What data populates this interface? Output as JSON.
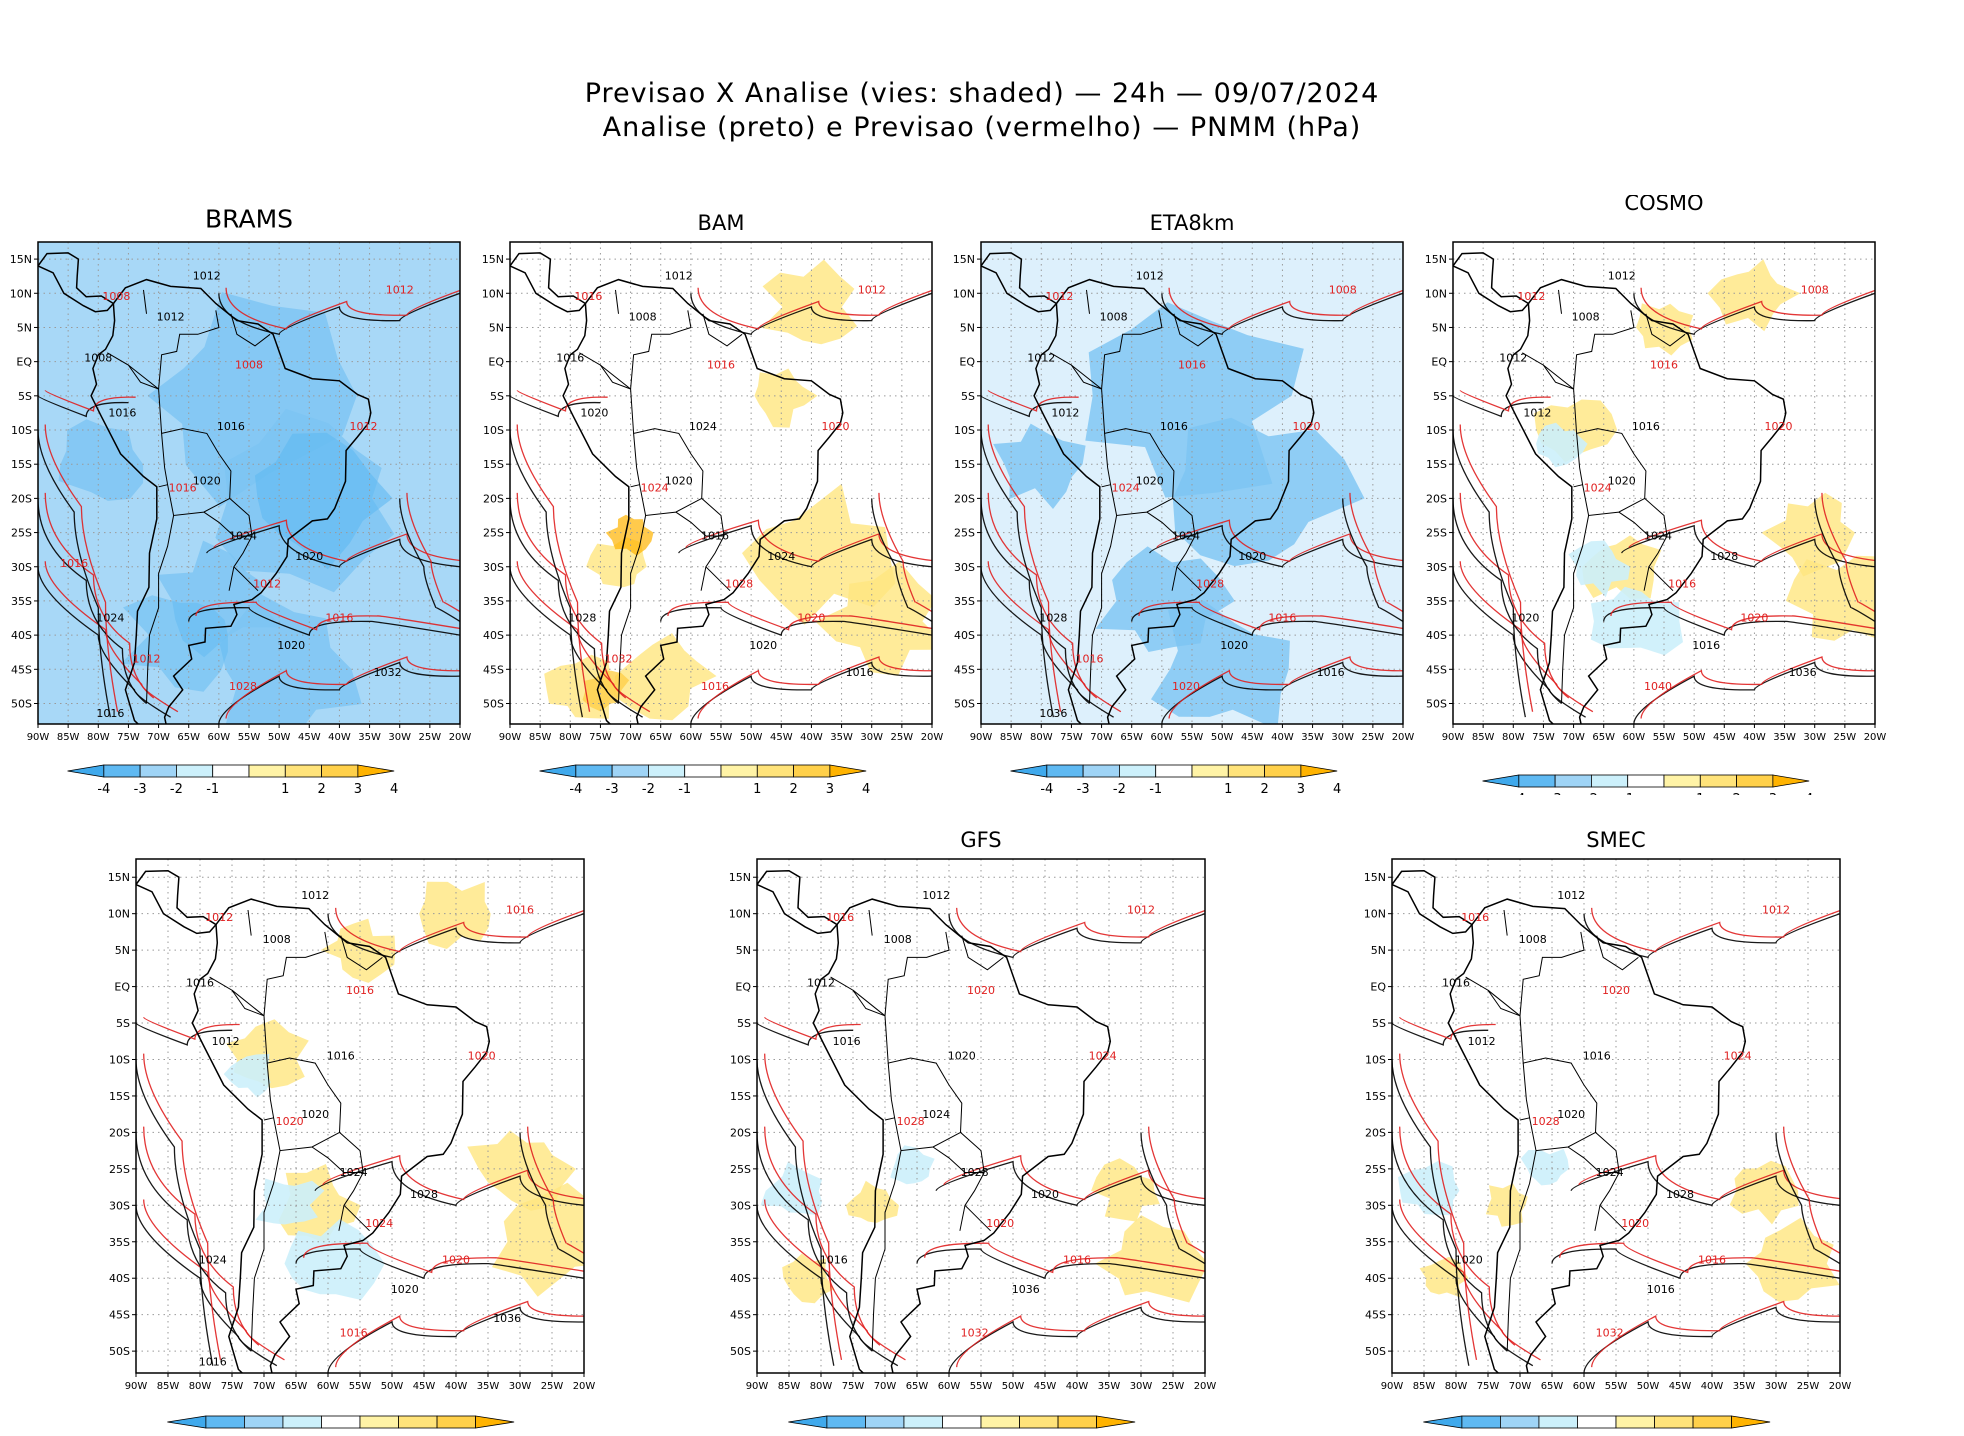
{
  "title_line1": "Previsao X Analise (vies: shaded) — 24h — 09/07/2024",
  "title_line2": "Analise (preto) e Previsao (vermelho) — PNMM (hPa)",
  "lat_labels": [
    "15N",
    "10N",
    "5N",
    "EQ",
    "5S",
    "10S",
    "15S",
    "20S",
    "25S",
    "30S",
    "35S",
    "40S",
    "45S",
    "50S"
  ],
  "lon_labels": [
    "90W",
    "85W",
    "80W",
    "75W",
    "70W",
    "65W",
    "60W",
    "55W",
    "50W",
    "45W",
    "40W",
    "35W",
    "30W",
    "25W",
    "20W"
  ],
  "colorbar": {
    "labels": [
      "-4",
      "-3",
      "-2",
      "-1",
      "1",
      "2",
      "3",
      "4"
    ],
    "colors": [
      "#3fa9ec",
      "#5fb9f2",
      "#9fd4f6",
      "#ccf0fb",
      "#ffffff",
      "#fff3a6",
      "#ffe37a",
      "#ffd04a",
      "#ffb300"
    ]
  },
  "palette": {
    "analysis": "#000000",
    "forecast": "#e02020",
    "neg": "#7cc4f2",
    "pos": "#ffe680"
  },
  "panels": [
    {
      "id": "brams",
      "name": "BRAMS",
      "bias": "negative",
      "isobars_black": [
        "1012",
        "1012",
        "1008",
        "1016",
        "1016",
        "1020",
        "1024",
        "1020",
        "1024",
        "1020",
        "1032",
        "1016"
      ],
      "isobars_red": [
        "1012",
        "1008",
        "1008",
        "1012",
        "1016",
        "1012",
        "1016",
        "1028",
        "1012",
        "1016"
      ]
    },
    {
      "id": "bam",
      "name": "BAM",
      "bias": "positive",
      "isobars_black": [
        "1012",
        "1008",
        "1016",
        "1020",
        "1024",
        "1020",
        "1016",
        "1024",
        "1028",
        "1020",
        "1016"
      ],
      "isobars_red": [
        "1012",
        "1016",
        "1016",
        "1020",
        "1024",
        "1028",
        "1020",
        "1016",
        "1032"
      ]
    },
    {
      "id": "eta8km",
      "name": "ETA8km",
      "bias": "negative",
      "isobars_black": [
        "1012",
        "1008",
        "1012",
        "1012",
        "1016",
        "1020",
        "1024",
        "1020",
        "1028",
        "1020",
        "1016",
        "1036"
      ],
      "isobars_red": [
        "1008",
        "1012",
        "1016",
        "1020",
        "1024",
        "1028",
        "1016",
        "1020",
        "1016"
      ]
    },
    {
      "id": "cosmo",
      "name": "COSMO",
      "bias": "mixed",
      "isobars_black": [
        "1012",
        "1008",
        "1012",
        "1012",
        "1016",
        "1020",
        "1024",
        "1028",
        "1020",
        "1016",
        "1036"
      ],
      "isobars_red": [
        "1008",
        "1012",
        "1016",
        "1020",
        "1024",
        "1016",
        "1020",
        "1040"
      ]
    },
    {
      "id": "unnamed",
      "name": "",
      "bias": "mixed",
      "isobars_black": [
        "1012",
        "1008",
        "1016",
        "1012",
        "1016",
        "1020",
        "1024",
        "1028",
        "1024",
        "1020",
        "1036",
        "1016"
      ],
      "isobars_red": [
        "1016",
        "1012",
        "1016",
        "1020",
        "1020",
        "1024",
        "1020",
        "1016"
      ]
    },
    {
      "id": "gfs",
      "name": "GFS",
      "bias": "neutral",
      "isobars_black": [
        "1012",
        "1008",
        "1012",
        "1016",
        "1020",
        "1024",
        "1028",
        "1020",
        "1016",
        "1036"
      ],
      "isobars_red": [
        "1012",
        "1016",
        "1020",
        "1024",
        "1028",
        "1020",
        "1016",
        "1032"
      ]
    },
    {
      "id": "smec",
      "name": "SMEC",
      "bias": "neutral",
      "isobars_black": [
        "1012",
        "1008",
        "1016",
        "1012",
        "1016",
        "1020",
        "1024",
        "1028",
        "1020",
        "1016"
      ],
      "isobars_red": [
        "1012",
        "1016",
        "1020",
        "1024",
        "1028",
        "1020",
        "1016",
        "1032"
      ]
    }
  ]
}
